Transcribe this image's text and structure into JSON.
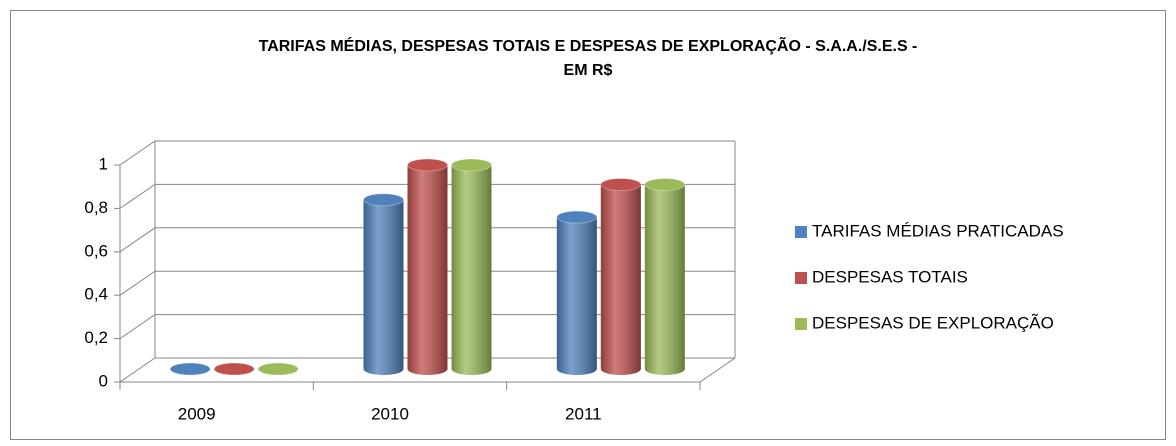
{
  "chart_data": {
    "type": "bar3d",
    "title": [
      "TARIFAS MÉDIAS, DESPESAS TOTAIS E DESPESAS DE EXPLORAÇÃO - S.A.A./S.E.S -",
      "EM R$"
    ],
    "categories": [
      "2009",
      "2010",
      "2011"
    ],
    "series": [
      {
        "name": "TARIFAS MÉDIAS PRATICADAS",
        "color": "#4f81bd",
        "values": [
          0,
          0.78,
          0.7
        ]
      },
      {
        "name": "DESPESAS TOTAIS",
        "color": "#c0504d",
        "values": [
          0,
          0.94,
          0.85
        ]
      },
      {
        "name": "DESPESAS DE EXPLORAÇÃO",
        "color": "#9bbb59",
        "values": [
          0,
          0.94,
          0.85
        ]
      }
    ],
    "ylim": [
      0,
      1
    ],
    "yticks": [
      0,
      {
        "value": 0.2,
        "label": "0,2"
      },
      {
        "value": 0.4,
        "label": "0,4"
      },
      {
        "value": 0.6,
        "label": "0,6"
      },
      {
        "value": 0.8,
        "label": "0,8"
      },
      1
    ],
    "grid": true,
    "legend": "right"
  }
}
